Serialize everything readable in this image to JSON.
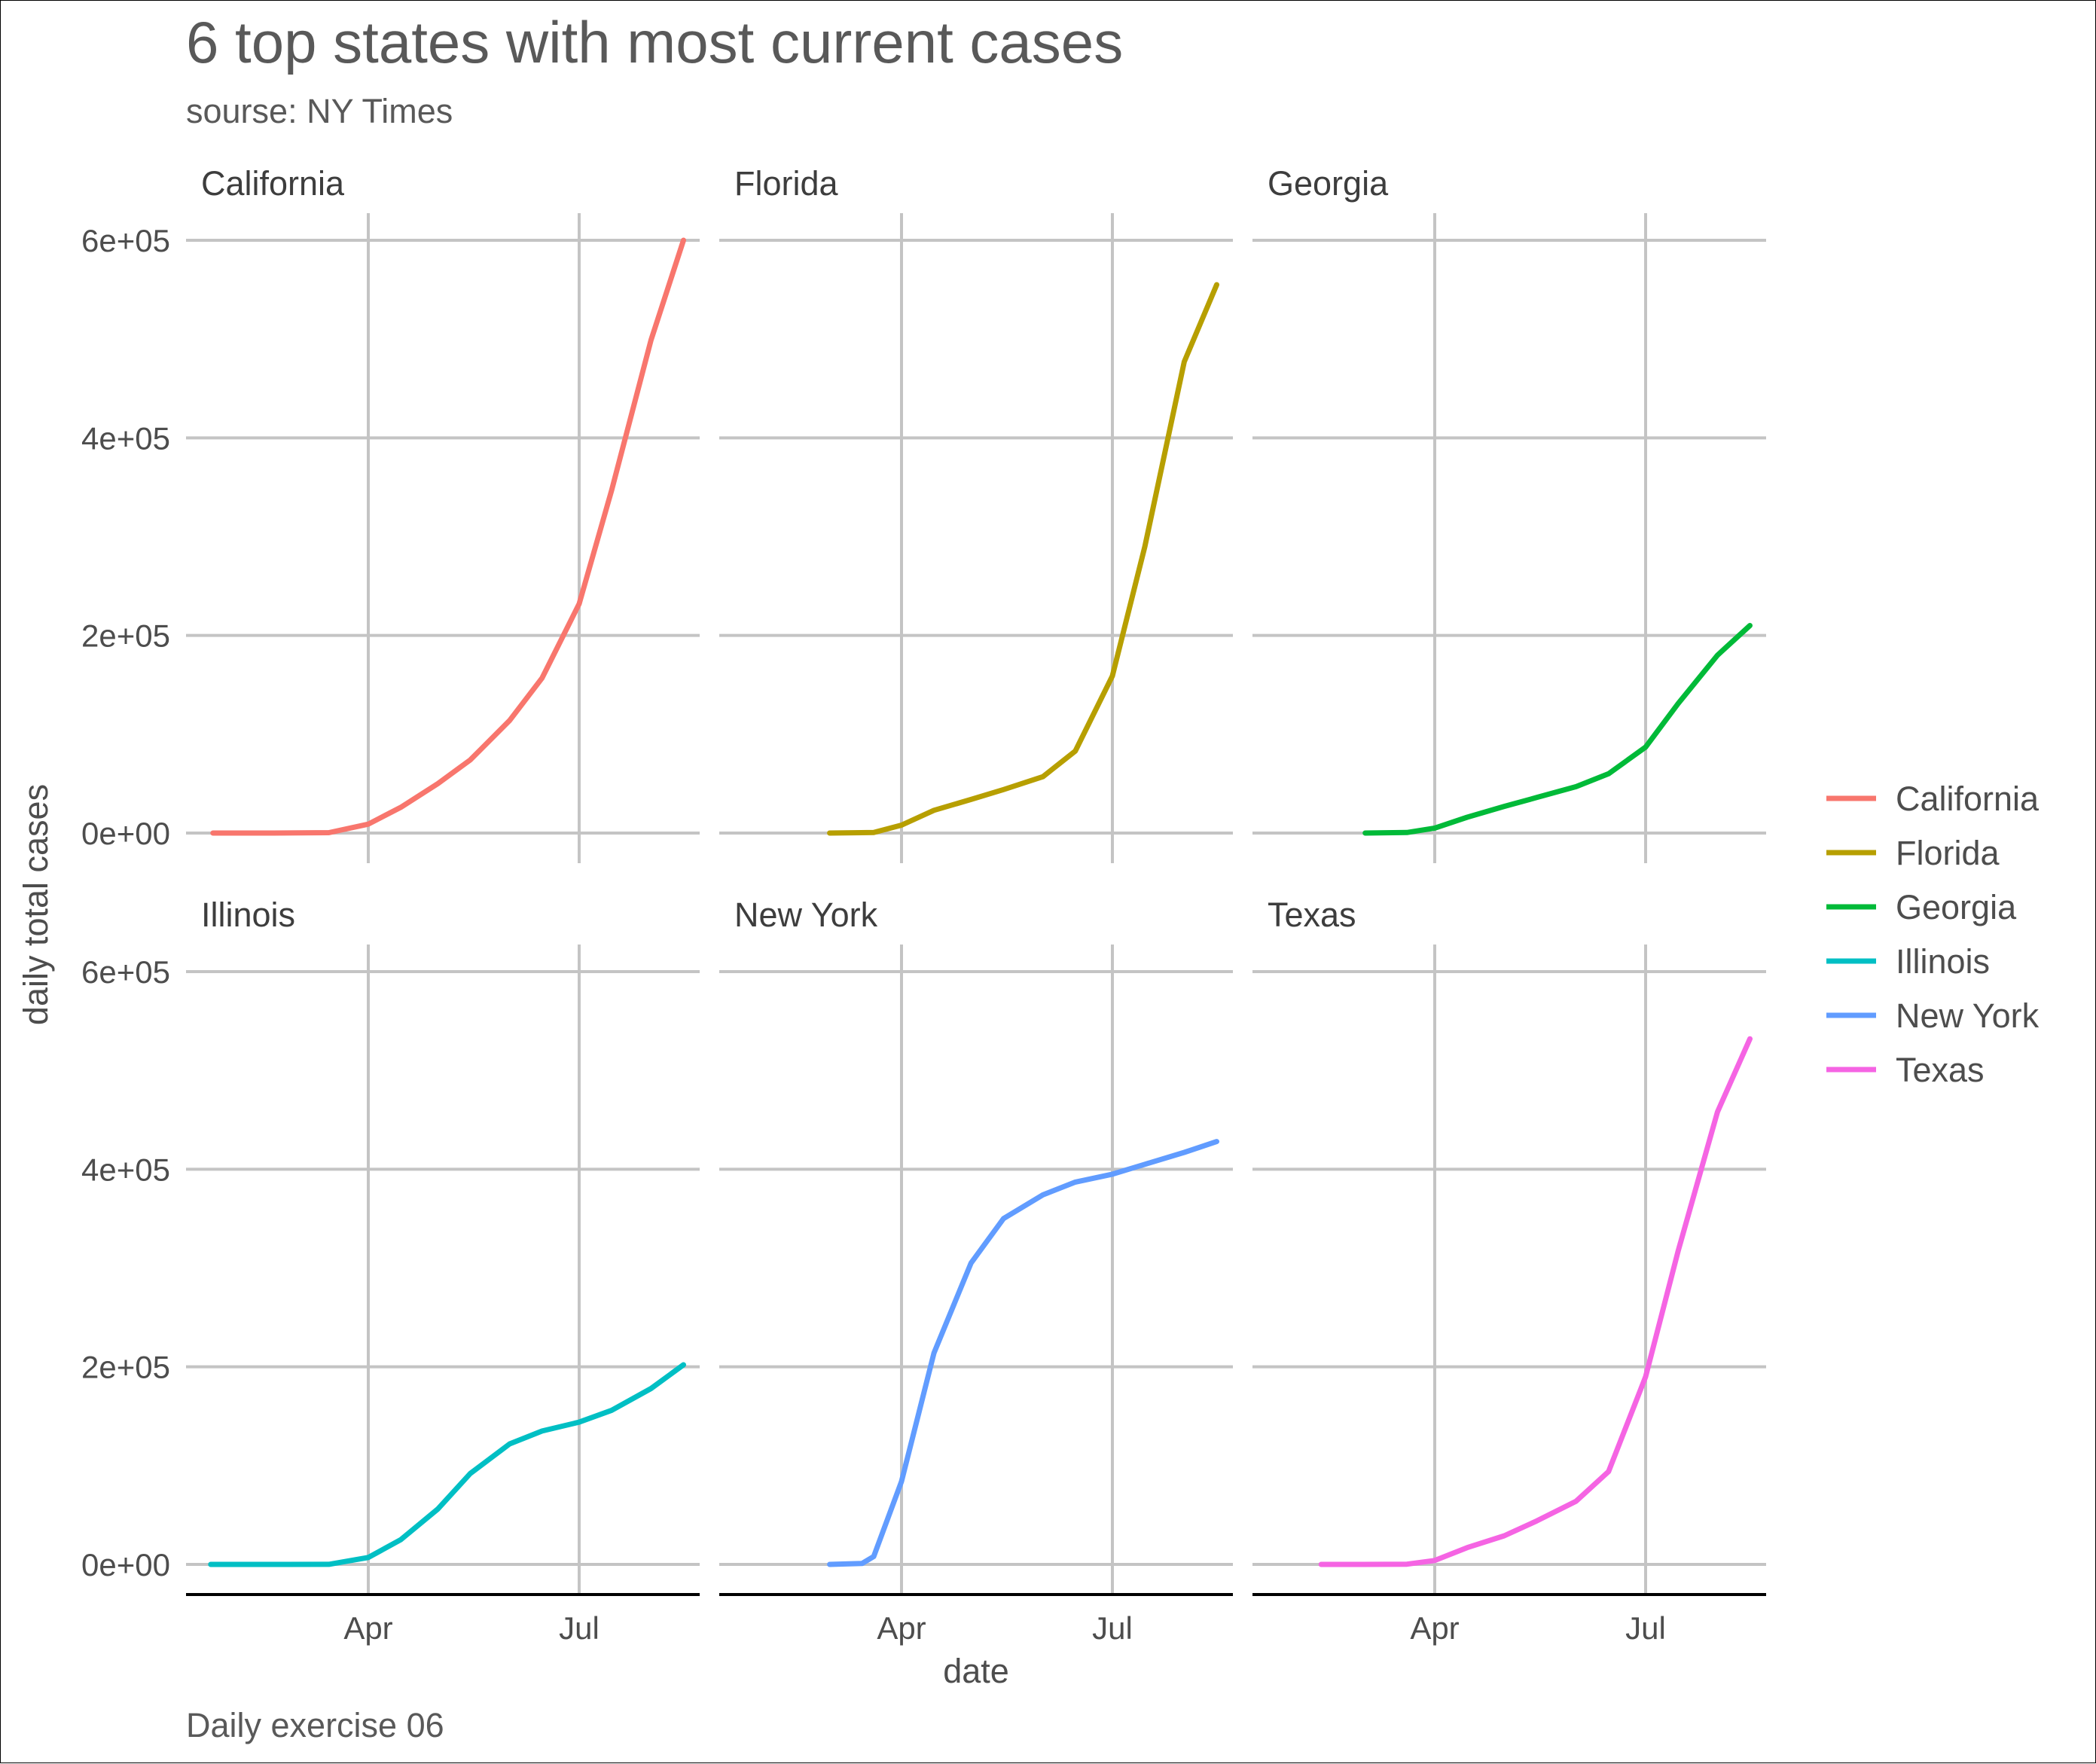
{
  "chart_data": {
    "type": "line",
    "title": "6 top states with most current cases",
    "subtitle": "sourse: NY Times",
    "caption": "Daily exercise 06",
    "xlabel": "date",
    "ylabel": "daily total cases",
    "x_ticks": [
      "Apr",
      "Jul"
    ],
    "y_ticks": [
      "0e+00",
      "2e+05",
      "4e+05",
      "6e+05"
    ],
    "ylim": [
      0,
      600000
    ],
    "grid": true,
    "facets": "3 columns x 2 rows, shared axes",
    "legend_position": "right",
    "series": [
      {
        "name": "California",
        "color": "#F8766D",
        "x": [
          "2020-01-25",
          "2020-02-20",
          "2020-03-15",
          "2020-04-01",
          "2020-04-15",
          "2020-05-01",
          "2020-05-15",
          "2020-06-01",
          "2020-06-15",
          "2020-07-01",
          "2020-07-15",
          "2020-08-01",
          "2020-08-15"
        ],
        "values": [
          1,
          15,
          400,
          9000,
          26000,
          50000,
          74000,
          114000,
          157000,
          232000,
          347000,
          499000,
          600000
        ]
      },
      {
        "name": "Florida",
        "color": "#B79F00",
        "x": [
          "2020-03-01",
          "2020-03-20",
          "2020-04-01",
          "2020-04-15",
          "2020-05-01",
          "2020-05-15",
          "2020-06-01",
          "2020-06-15",
          "2020-07-01",
          "2020-07-15",
          "2020-08-01",
          "2020-08-15"
        ],
        "values": [
          2,
          500,
          8000,
          23000,
          34000,
          44000,
          57000,
          83000,
          159000,
          290000,
          477000,
          555000
        ]
      },
      {
        "name": "Georgia",
        "color": "#00BA38",
        "x": [
          "2020-03-02",
          "2020-03-20",
          "2020-04-01",
          "2020-04-15",
          "2020-05-01",
          "2020-05-15",
          "2020-06-01",
          "2020-06-15",
          "2020-07-01",
          "2020-07-15",
          "2020-08-01",
          "2020-08-15"
        ],
        "values": [
          2,
          500,
          5000,
          16000,
          27000,
          36000,
          47000,
          60000,
          87000,
          131000,
          180000,
          210000
        ]
      },
      {
        "name": "Illinois",
        "color": "#00BFC4",
        "x": [
          "2020-01-24",
          "2020-02-20",
          "2020-03-15",
          "2020-04-01",
          "2020-04-15",
          "2020-05-01",
          "2020-05-15",
          "2020-06-01",
          "2020-06-15",
          "2020-07-01",
          "2020-07-15",
          "2020-08-01",
          "2020-08-15"
        ],
        "values": [
          1,
          2,
          100,
          7000,
          25000,
          56000,
          92000,
          122000,
          135000,
          144000,
          156000,
          178000,
          202000
        ]
      },
      {
        "name": "New York",
        "color": "#619CFF",
        "x": [
          "2020-03-01",
          "2020-03-15",
          "2020-03-20",
          "2020-04-01",
          "2020-04-15",
          "2020-05-01",
          "2020-05-15",
          "2020-06-01",
          "2020-06-15",
          "2020-07-01",
          "2020-07-15",
          "2020-08-01",
          "2020-08-15"
        ],
        "values": [
          1,
          1000,
          8000,
          84000,
          214000,
          305000,
          350000,
          374000,
          387000,
          395000,
          405000,
          417000,
          428000
        ]
      },
      {
        "name": "Texas",
        "color": "#F564E3",
        "x": [
          "2020-02-12",
          "2020-03-01",
          "2020-03-20",
          "2020-04-01",
          "2020-04-15",
          "2020-05-01",
          "2020-05-15",
          "2020-06-01",
          "2020-06-15",
          "2020-07-01",
          "2020-07-15",
          "2020-08-01",
          "2020-08-15"
        ],
        "values": [
          1,
          5,
          200,
          4000,
          17000,
          29000,
          44000,
          64000,
          94000,
          190000,
          317000,
          458000,
          532000
        ]
      }
    ]
  }
}
